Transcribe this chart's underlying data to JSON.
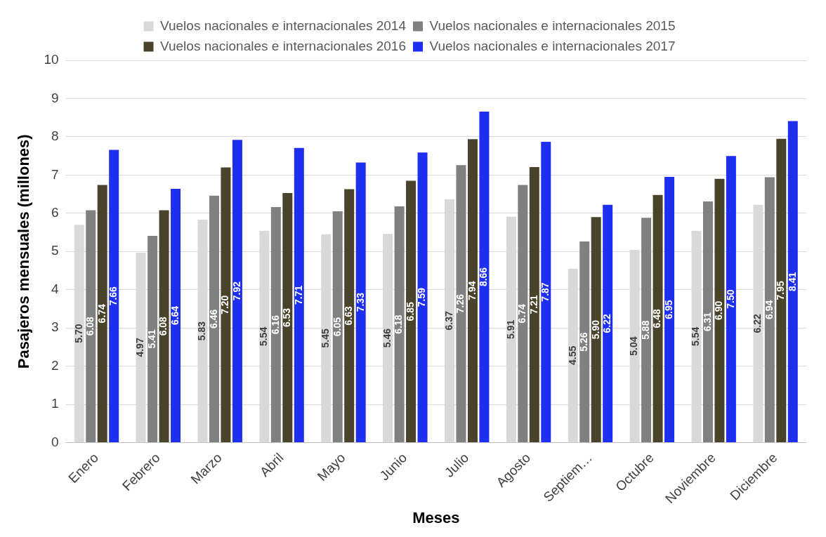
{
  "chart_data": {
    "type": "bar",
    "xlabel": "Meses",
    "ylabel": "Pasajeros mensuales (millones)",
    "categories": [
      "Enero",
      "Febrero",
      "Marzo",
      "Abril",
      "Mayo",
      "Junio",
      "Julio",
      "Agosto",
      "Septiem…",
      "Octubre",
      "Noviembre",
      "Diciembre"
    ],
    "series": [
      {
        "name": "Vuelos nacionales e internacionales 2014",
        "color": "#d9d9d9",
        "values": [
          5.7,
          4.97,
          5.83,
          5.54,
          5.45,
          5.46,
          6.37,
          5.91,
          4.55,
          5.04,
          5.54,
          6.22
        ],
        "value_labels": [
          "5.70",
          "4.97",
          "5.83",
          "5.54",
          "5.45",
          "5.46",
          "6.37",
          "5.91",
          "4.55",
          "5.04",
          "5.54",
          "6.22"
        ]
      },
      {
        "name": "Vuelos nacionales e internacionales 2015",
        "color": "#808080",
        "values": [
          6.08,
          5.41,
          6.46,
          6.16,
          6.05,
          6.18,
          7.26,
          6.74,
          5.26,
          5.88,
          6.31,
          6.94
        ],
        "value_labels": [
          "6.08",
          "5.41",
          "6.46",
          "6.16",
          "6.05",
          "6.18",
          "7.26",
          "6.74",
          "5.26",
          "5.88",
          "6.31",
          "6.94"
        ]
      },
      {
        "name": "Vuelos nacionales e internacionales 2016",
        "color": "#4a432c",
        "values": [
          6.74,
          6.08,
          7.2,
          6.53,
          6.63,
          6.85,
          7.94,
          7.21,
          5.9,
          6.48,
          6.9,
          7.95
        ],
        "value_labels": [
          "6.74",
          "6.08",
          "7.20",
          "6.53",
          "6.63",
          "6.85",
          "7.94",
          "7.21",
          "5.90",
          "6.48",
          "6.90",
          "7.95"
        ]
      },
      {
        "name": "Vuelos nacionales e internacionales 2017",
        "color": "#1f2ff0",
        "values": [
          7.66,
          6.64,
          7.92,
          7.71,
          7.33,
          7.59,
          8.66,
          7.87,
          6.22,
          6.95,
          7.5,
          8.41
        ],
        "value_labels": [
          "7.66",
          "6.64",
          "7.92",
          "7.71",
          "7.33",
          "7.59",
          "8.66",
          "7.87",
          "6.22",
          "6.95",
          "7.50",
          "8.41"
        ]
      }
    ],
    "ylim": [
      0,
      10
    ],
    "yticks": [
      0,
      1,
      2,
      3,
      4,
      5,
      6,
      7,
      8,
      9,
      10
    ],
    "grid": "y",
    "legend": "top"
  }
}
